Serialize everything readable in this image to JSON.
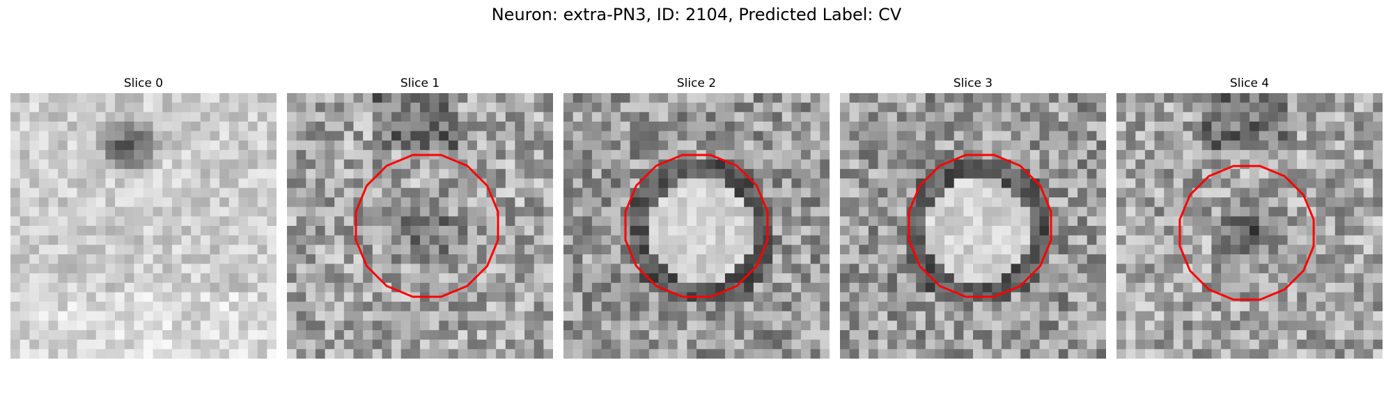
{
  "figure": {
    "title": "Neuron: extra-PN3, ID: 2104, Predicted Label: CV"
  },
  "panels": [
    {
      "title": "Slice 0",
      "has_contour": false,
      "seed": 11,
      "pattern": "bright-top-blob"
    },
    {
      "title": "Slice 1",
      "has_contour": true,
      "seed": 23,
      "pattern": "dark-center"
    },
    {
      "title": "Slice 2",
      "has_contour": true,
      "seed": 37,
      "pattern": "bright-center-dark-ring"
    },
    {
      "title": "Slice 3",
      "has_contour": true,
      "seed": 41,
      "pattern": "bright-center-dark-ring"
    },
    {
      "title": "Slice 4",
      "has_contour": true,
      "seed": 53,
      "pattern": "dark-center"
    }
  ],
  "colors": {
    "contour": "#ff0000",
    "background": "#ffffff"
  },
  "colormap": "grayscale"
}
